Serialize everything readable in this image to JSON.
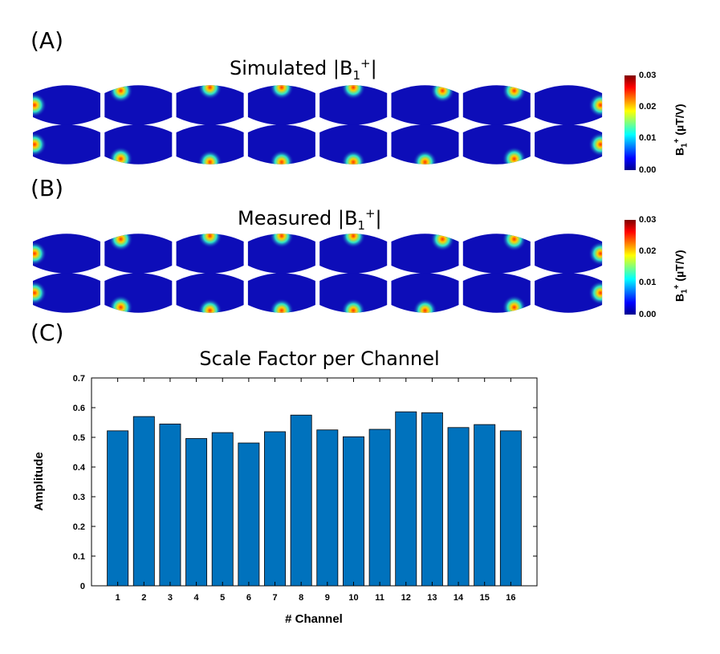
{
  "panels": {
    "a": {
      "label": "(A)",
      "title_pre": "Simulated |B",
      "title_sub": "1",
      "title_sup": "+",
      "title_post": "|"
    },
    "b": {
      "label": "(B)",
      "title_pre": "Measured |B",
      "title_sub": "1",
      "title_sup": "+",
      "title_post": "|"
    },
    "c": {
      "label": "(C)"
    }
  },
  "colorbar": {
    "ticks": [
      "0.03",
      "0.02",
      "0.01",
      "0.00"
    ],
    "label_pre": "B",
    "label_sub": "1",
    "label_sup": "+",
    "label_post": " (µT/V)",
    "colors": [
      "#7f0000",
      "#ff0000",
      "#ff7f00",
      "#ffff00",
      "#7fff7f",
      "#00ffff",
      "#007fff",
      "#0000ff",
      "#00008f"
    ]
  },
  "field_maps": {
    "background": "#0d0db8",
    "hotspot_color_center": "#ff3000",
    "hotspot_color_mid": "#ffd000",
    "hotspot_color_outer": "#33ffcc",
    "simulated_top_hotspots": [
      "left",
      "upper-left",
      "top",
      "top",
      "top",
      "upper-right",
      "upper-right",
      "right"
    ],
    "simulated_bottom_hotspots": [
      "left",
      "lower-left",
      "bottom",
      "bottom",
      "bottom",
      "bottom",
      "lower-right",
      "right"
    ],
    "measured_top_hotspots": [
      "left",
      "upper-left",
      "top",
      "top",
      "top",
      "upper-right",
      "upper-right",
      "right"
    ],
    "measured_bottom_hotspots": [
      "left",
      "lower-left",
      "bottom",
      "bottom",
      "bottom",
      "bottom",
      "lower-right",
      "right"
    ]
  },
  "chart_data": {
    "type": "bar",
    "title": "Scale Factor per Channel",
    "xlabel": "# Channel",
    "ylabel": "Amplitude",
    "categories": [
      "1",
      "2",
      "3",
      "4",
      "5",
      "6",
      "7",
      "8",
      "9",
      "10",
      "11",
      "12",
      "13",
      "14",
      "15",
      "16"
    ],
    "values": [
      0.522,
      0.57,
      0.545,
      0.496,
      0.516,
      0.481,
      0.519,
      0.575,
      0.525,
      0.502,
      0.527,
      0.586,
      0.583,
      0.533,
      0.543,
      0.522
    ],
    "ylim": [
      0,
      0.7
    ],
    "yticks": [
      "0",
      "0.1",
      "0.2",
      "0.3",
      "0.4",
      "0.5",
      "0.6",
      "0.7"
    ],
    "xlim": [
      0,
      17
    ],
    "bar_color": "#0072bd",
    "grid": false
  }
}
